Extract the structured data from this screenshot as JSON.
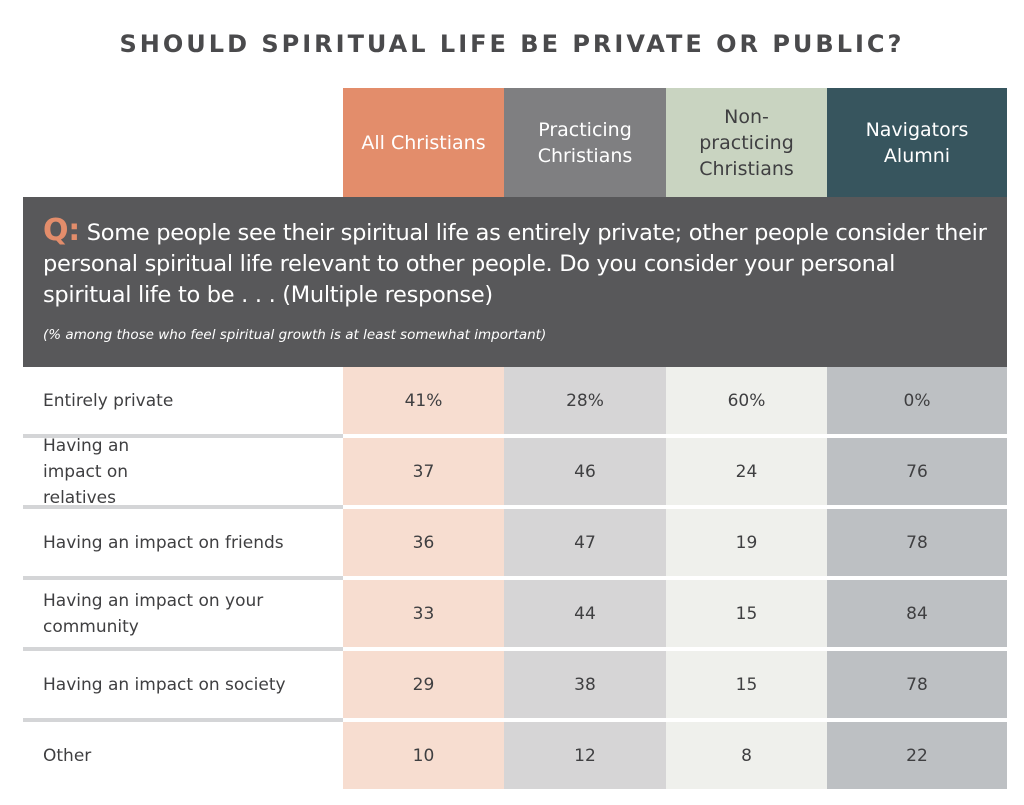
{
  "title": "SHOULD SPIRITUAL LIFE BE PRIVATE OR PUBLIC?",
  "colors": {
    "all_christians": "#e38d6b",
    "practicing": "#7f7f81",
    "non_practicing": "#c9d4c1",
    "navigators": "#37555e",
    "question_bg": "#58585a"
  },
  "question": {
    "marker": "Q:",
    "text": "Some people see their spiritual life as entirely private; other people consider their personal spiritual life relevant to other people. Do you consider your personal spiritual life to be . . . (Multiple response)",
    "note": "(% among those who feel spiritual growth is at least somewhat important)"
  },
  "chart_data": {
    "type": "table",
    "title": "SHOULD SPIRITUAL LIFE BE PRIVATE OR PUBLIC?",
    "columns": [
      "All Christians",
      "Practicing Christians",
      "Non-practicing Christians",
      "Navigators Alumni"
    ],
    "rows": [
      {
        "label": "Entirely private",
        "values": [
          "41%",
          "28%",
          "60%",
          "0%"
        ]
      },
      {
        "label": "Having an impact on relatives",
        "values": [
          "37",
          "46",
          "24",
          "76"
        ]
      },
      {
        "label": "Having an impact on friends",
        "values": [
          "36",
          "47",
          "19",
          "78"
        ]
      },
      {
        "label": "Having an impact on your community",
        "values": [
          "33",
          "44",
          "15",
          "84"
        ]
      },
      {
        "label": "Having an impact on society",
        "values": [
          "29",
          "38",
          "15",
          "78"
        ]
      },
      {
        "label": "Other",
        "values": [
          "10",
          "12",
          "8",
          "22"
        ]
      }
    ]
  }
}
